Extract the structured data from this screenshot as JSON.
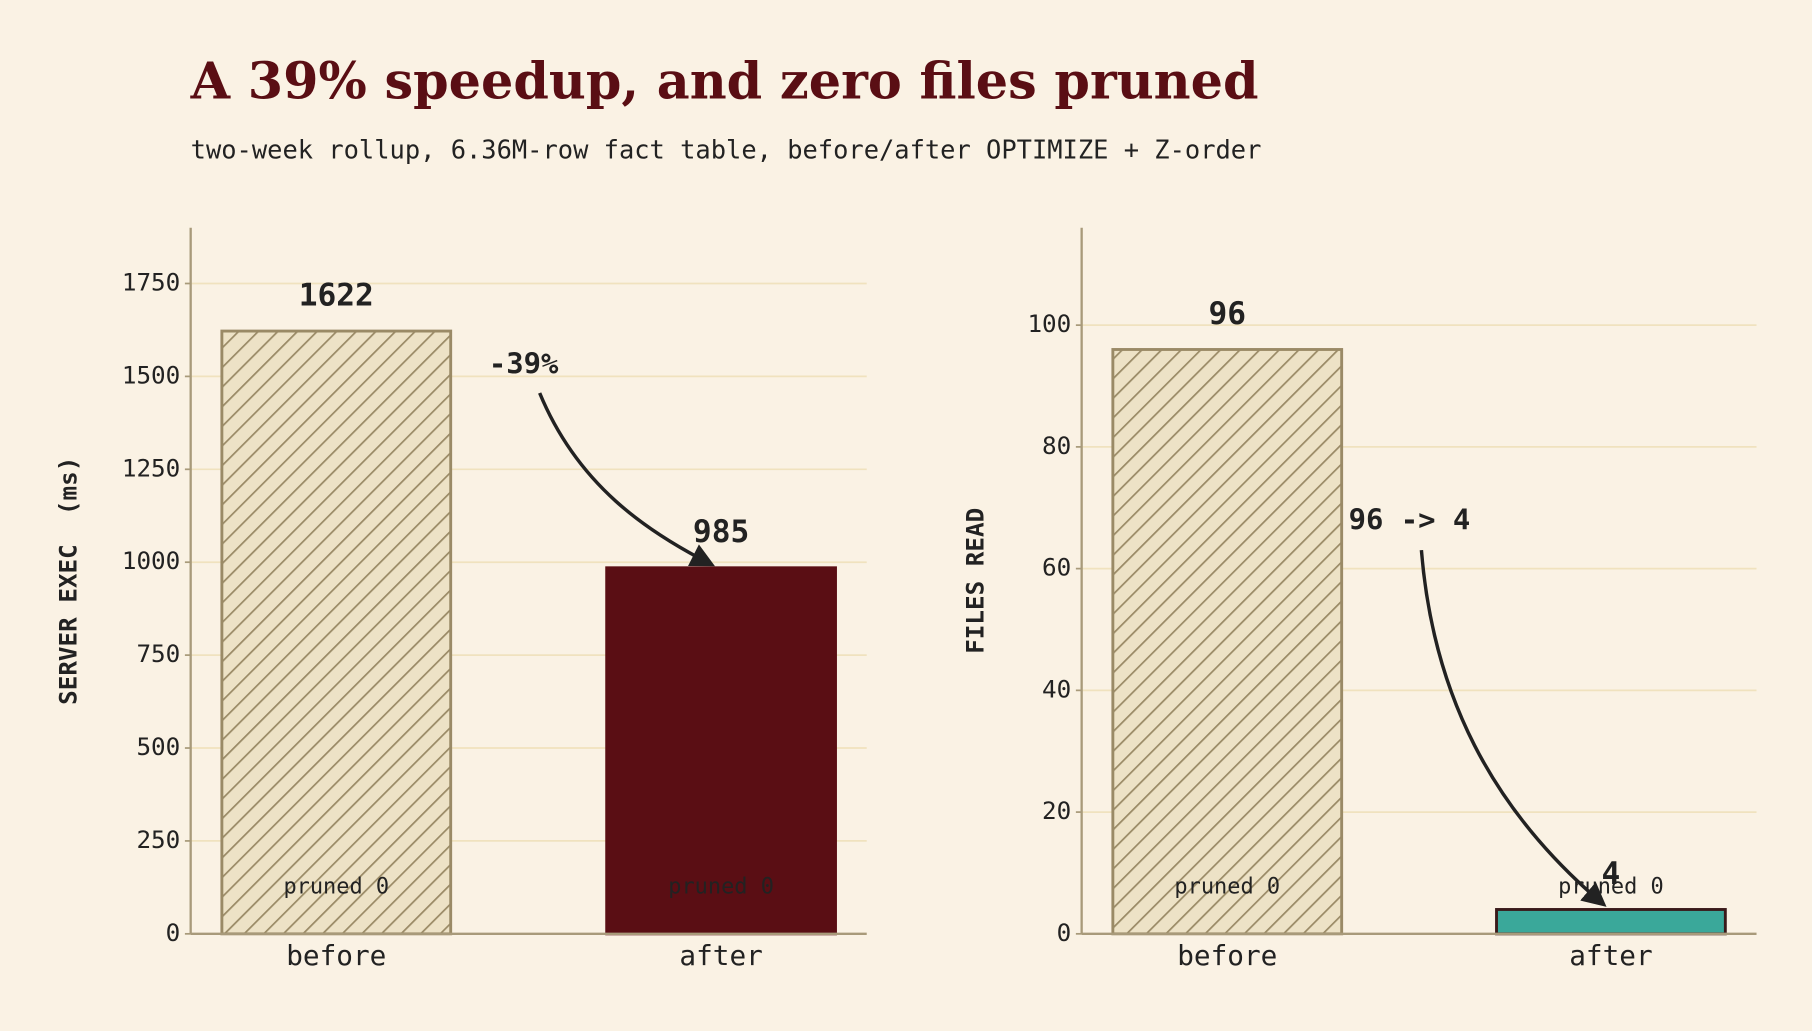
{
  "title": "A 39% speedup, and zero files pruned",
  "subtitle": "two-week rollup, 6.36M-row fact table, before/after OPTIMIZE + Z-order",
  "chart_data": [
    {
      "type": "bar",
      "ylabel": "SERVER EXEC  (ms)",
      "categories": [
        "before",
        "after"
      ],
      "values": [
        1622,
        985
      ],
      "colors": [
        "#ede2c6",
        "#5a0e14"
      ],
      "hatched": [
        true,
        false
      ],
      "bar_notes": [
        "pruned 0",
        "pruned 0"
      ],
      "annotation": "-39%",
      "ylim": [
        0,
        1900
      ],
      "yticks": [
        0,
        250,
        500,
        750,
        1000,
        1250,
        1500,
        1750
      ],
      "grid": true
    },
    {
      "type": "bar",
      "ylabel": "FILES READ",
      "categories": [
        "before",
        "after"
      ],
      "values": [
        96,
        4
      ],
      "colors": [
        "#ede2c6",
        "#3aa89a"
      ],
      "hatched": [
        true,
        false
      ],
      "bar_notes": [
        "pruned 0",
        "pruned 0"
      ],
      "annotation": "96 -> 4",
      "ylim": [
        0,
        116
      ],
      "yticks": [
        0,
        20,
        40,
        60,
        80,
        100
      ],
      "grid": true
    }
  ]
}
